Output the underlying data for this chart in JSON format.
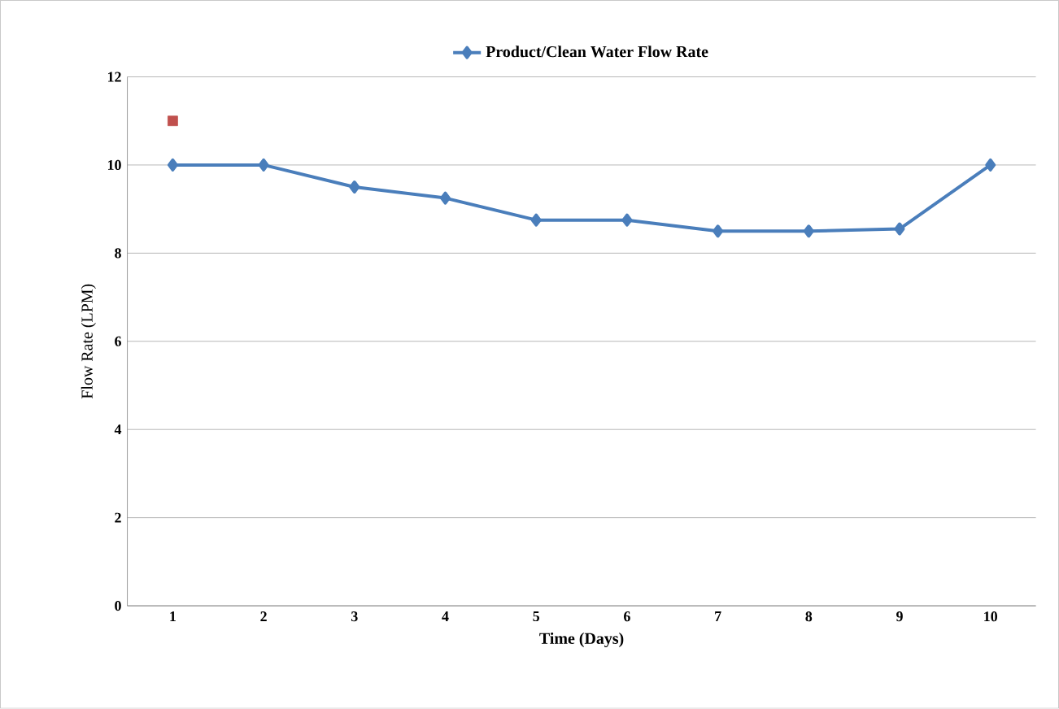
{
  "chart_data": {
    "type": "line",
    "xlabel": "Time (Days)",
    "ylabel": "Flow Rate (LPM)",
    "categories": [
      "1",
      "2",
      "3",
      "4",
      "5",
      "6",
      "7",
      "8",
      "9",
      "10"
    ],
    "series": [
      {
        "name": "Product/Clean Water Flow Rate",
        "color": "#4a7ebb",
        "marker": "diamond",
        "values": [
          10,
          10,
          9.5,
          9.25,
          8.75,
          8.75,
          8.5,
          8.5,
          8.55,
          10
        ]
      },
      {
        "type": "scatter",
        "color": "#c0504d",
        "marker": "square",
        "x": [
          "1"
        ],
        "values": [
          11
        ]
      }
    ],
    "ylim": [
      0,
      12
    ],
    "yticks": [
      0,
      2,
      4,
      6,
      8,
      10,
      12
    ],
    "grid": "y",
    "legend": "top"
  }
}
